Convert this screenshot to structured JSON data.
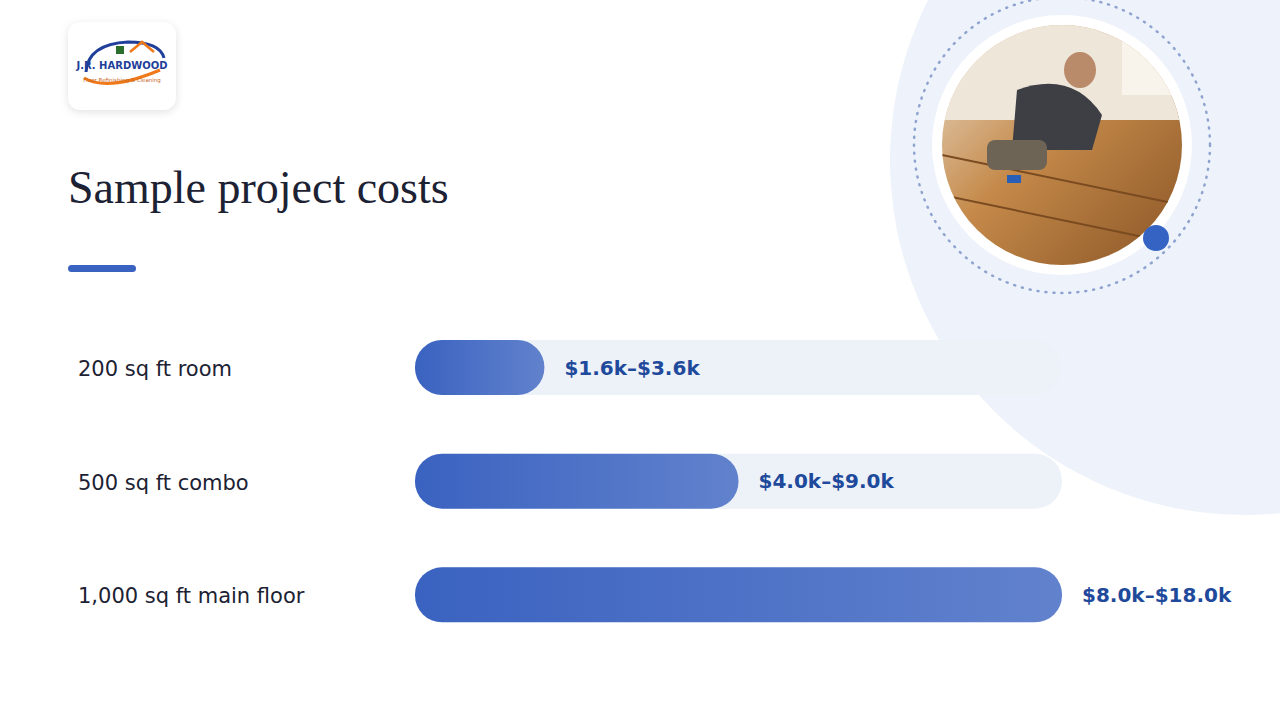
{
  "header": {
    "title": "Sample project costs",
    "logo": {
      "name": "J.R. HARDWOOD",
      "tagline": "Floor Refinishing & Cleaning"
    }
  },
  "chart_data": {
    "type": "bar",
    "orientation": "horizontal",
    "categories": [
      "200 sq ft room",
      "500 sq ft combo",
      "1,000 sq ft main floor"
    ],
    "values": [
      3600,
      9000,
      18000
    ],
    "value_labels": [
      "$1.6k–$3.6k",
      "$4.0k–$9.0k",
      "$8.0k–$18.0k"
    ],
    "xlim": [
      0,
      18000
    ],
    "tick_labels": false,
    "data_labels": true,
    "color": "#3a62c0"
  }
}
